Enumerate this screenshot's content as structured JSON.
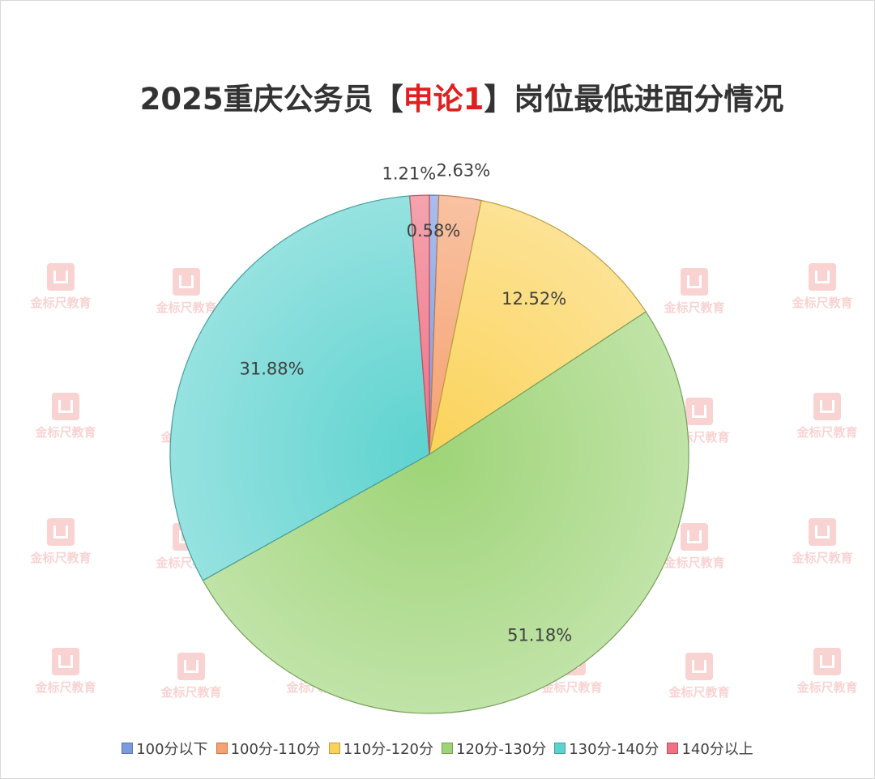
{
  "chart_data": {
    "type": "pie",
    "title_parts": [
      "2025重庆公务员【",
      "申论1",
      "】岗位最低进面分情况"
    ],
    "categories": [
      "100分以下",
      "100分-110分",
      "110分-120分",
      "120分-130分",
      "130分-140分",
      "140分以上"
    ],
    "values": [
      0.58,
      2.63,
      12.52,
      51.18,
      31.88,
      1.21
    ],
    "labels": [
      "0.58%",
      "2.63%",
      "12.52%",
      "51.18%",
      "31.88%",
      "1.21%"
    ],
    "colors": [
      "#7b9be0",
      "#f5a170",
      "#fbd35a",
      "#9ed477",
      "#5dd3cf",
      "#ef7184"
    ],
    "legend_position": "bottom",
    "start_angle_deg": 0,
    "direction": "clockwise"
  },
  "watermark": {
    "text": "金标尺教育",
    "color": "#e53935"
  }
}
